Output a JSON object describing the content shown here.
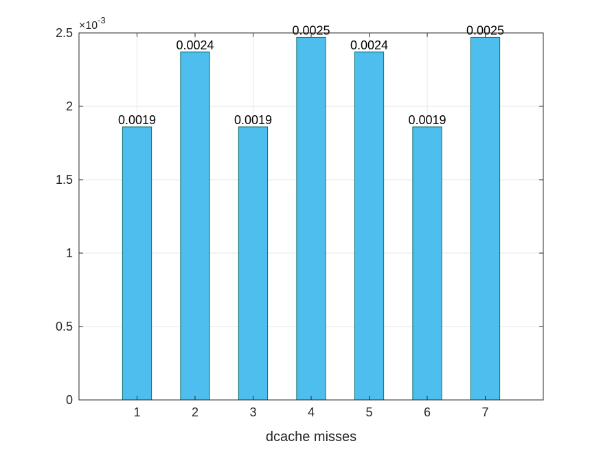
{
  "chart_data": {
    "type": "bar",
    "categories": [
      "1",
      "2",
      "3",
      "4",
      "5",
      "6",
      "7"
    ],
    "values": [
      0.00186,
      0.00237,
      0.00186,
      0.00247,
      0.00237,
      0.00186,
      0.00247
    ],
    "data_labels": [
      "0.0019",
      "0.0024",
      "0.0019",
      "0.0025",
      "0.0024",
      "0.0019",
      "0.0025"
    ],
    "title": "",
    "xlabel": "dcache misses",
    "ylabel": "",
    "xlim": [
      0,
      8
    ],
    "ylim": [
      0,
      0.0025
    ],
    "y_ticks": [
      0,
      0.0005,
      0.001,
      0.0015,
      0.002,
      0.0025
    ],
    "y_tick_labels": [
      "0",
      "0.5",
      "1",
      "1.5",
      "2",
      "2.5"
    ],
    "y_exponent_base": "×10",
    "y_exponent_power": "-3",
    "grid": true,
    "legend": "none",
    "colors": {
      "bar_fill": "#4DBEEE",
      "bar_edge": "#0B6F6F",
      "axes": "#262626",
      "grid": "#e6e6e6"
    }
  }
}
